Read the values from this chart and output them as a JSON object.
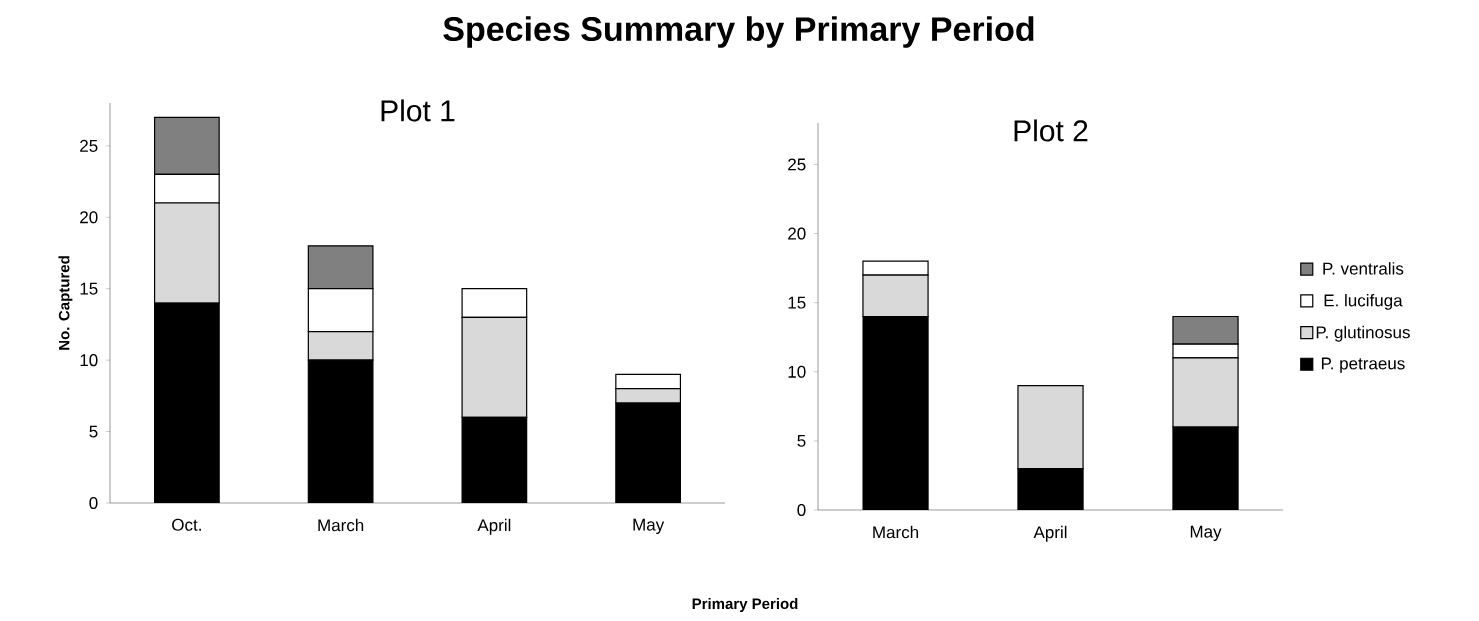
{
  "chart_data": [
    {
      "type": "bar",
      "title": "Species Summary by Primary Period",
      "subtitle": "Plot 1",
      "xlabel": "Primary Period",
      "ylabel": "No. Captured",
      "stacked": true,
      "legend": false,
      "grid": false,
      "categories": [
        "Oct.",
        "March",
        "April",
        "May"
      ],
      "ylim": [
        0,
        28
      ],
      "yticks": [
        0,
        5,
        10,
        15,
        20,
        25
      ],
      "series": [
        {
          "color": "#000000",
          "values": [
            14,
            10,
            6,
            7
          ]
        },
        {
          "color": "#d9d9d9",
          "values": [
            7,
            2,
            7,
            1
          ]
        },
        {
          "color": "#ffffff",
          "values": [
            2,
            3,
            2,
            1
          ]
        },
        {
          "color": "#808080",
          "values": [
            4,
            3,
            0,
            0
          ]
        }
      ]
    },
    {
      "type": "bar",
      "subtitle": "Plot 2",
      "stacked": true,
      "legend": "right",
      "grid": false,
      "categories": [
        "March",
        "April",
        "May"
      ],
      "ylim": [
        0,
        28
      ],
      "yticks": [
        0,
        5,
        10,
        15,
        20,
        25
      ],
      "series": [
        {
          "name": "P. petraeus",
          "color": "#000000",
          "values": [
            14,
            3,
            6
          ]
        },
        {
          "name": "P. glutinosus",
          "color": "#d9d9d9",
          "values": [
            3,
            6,
            5
          ]
        },
        {
          "name": "E. lucifuga",
          "color": "#ffffff",
          "values": [
            1,
            0,
            1
          ]
        },
        {
          "name": "P. ventralis",
          "color": "#808080",
          "values": [
            0,
            0,
            2
          ]
        }
      ]
    }
  ]
}
